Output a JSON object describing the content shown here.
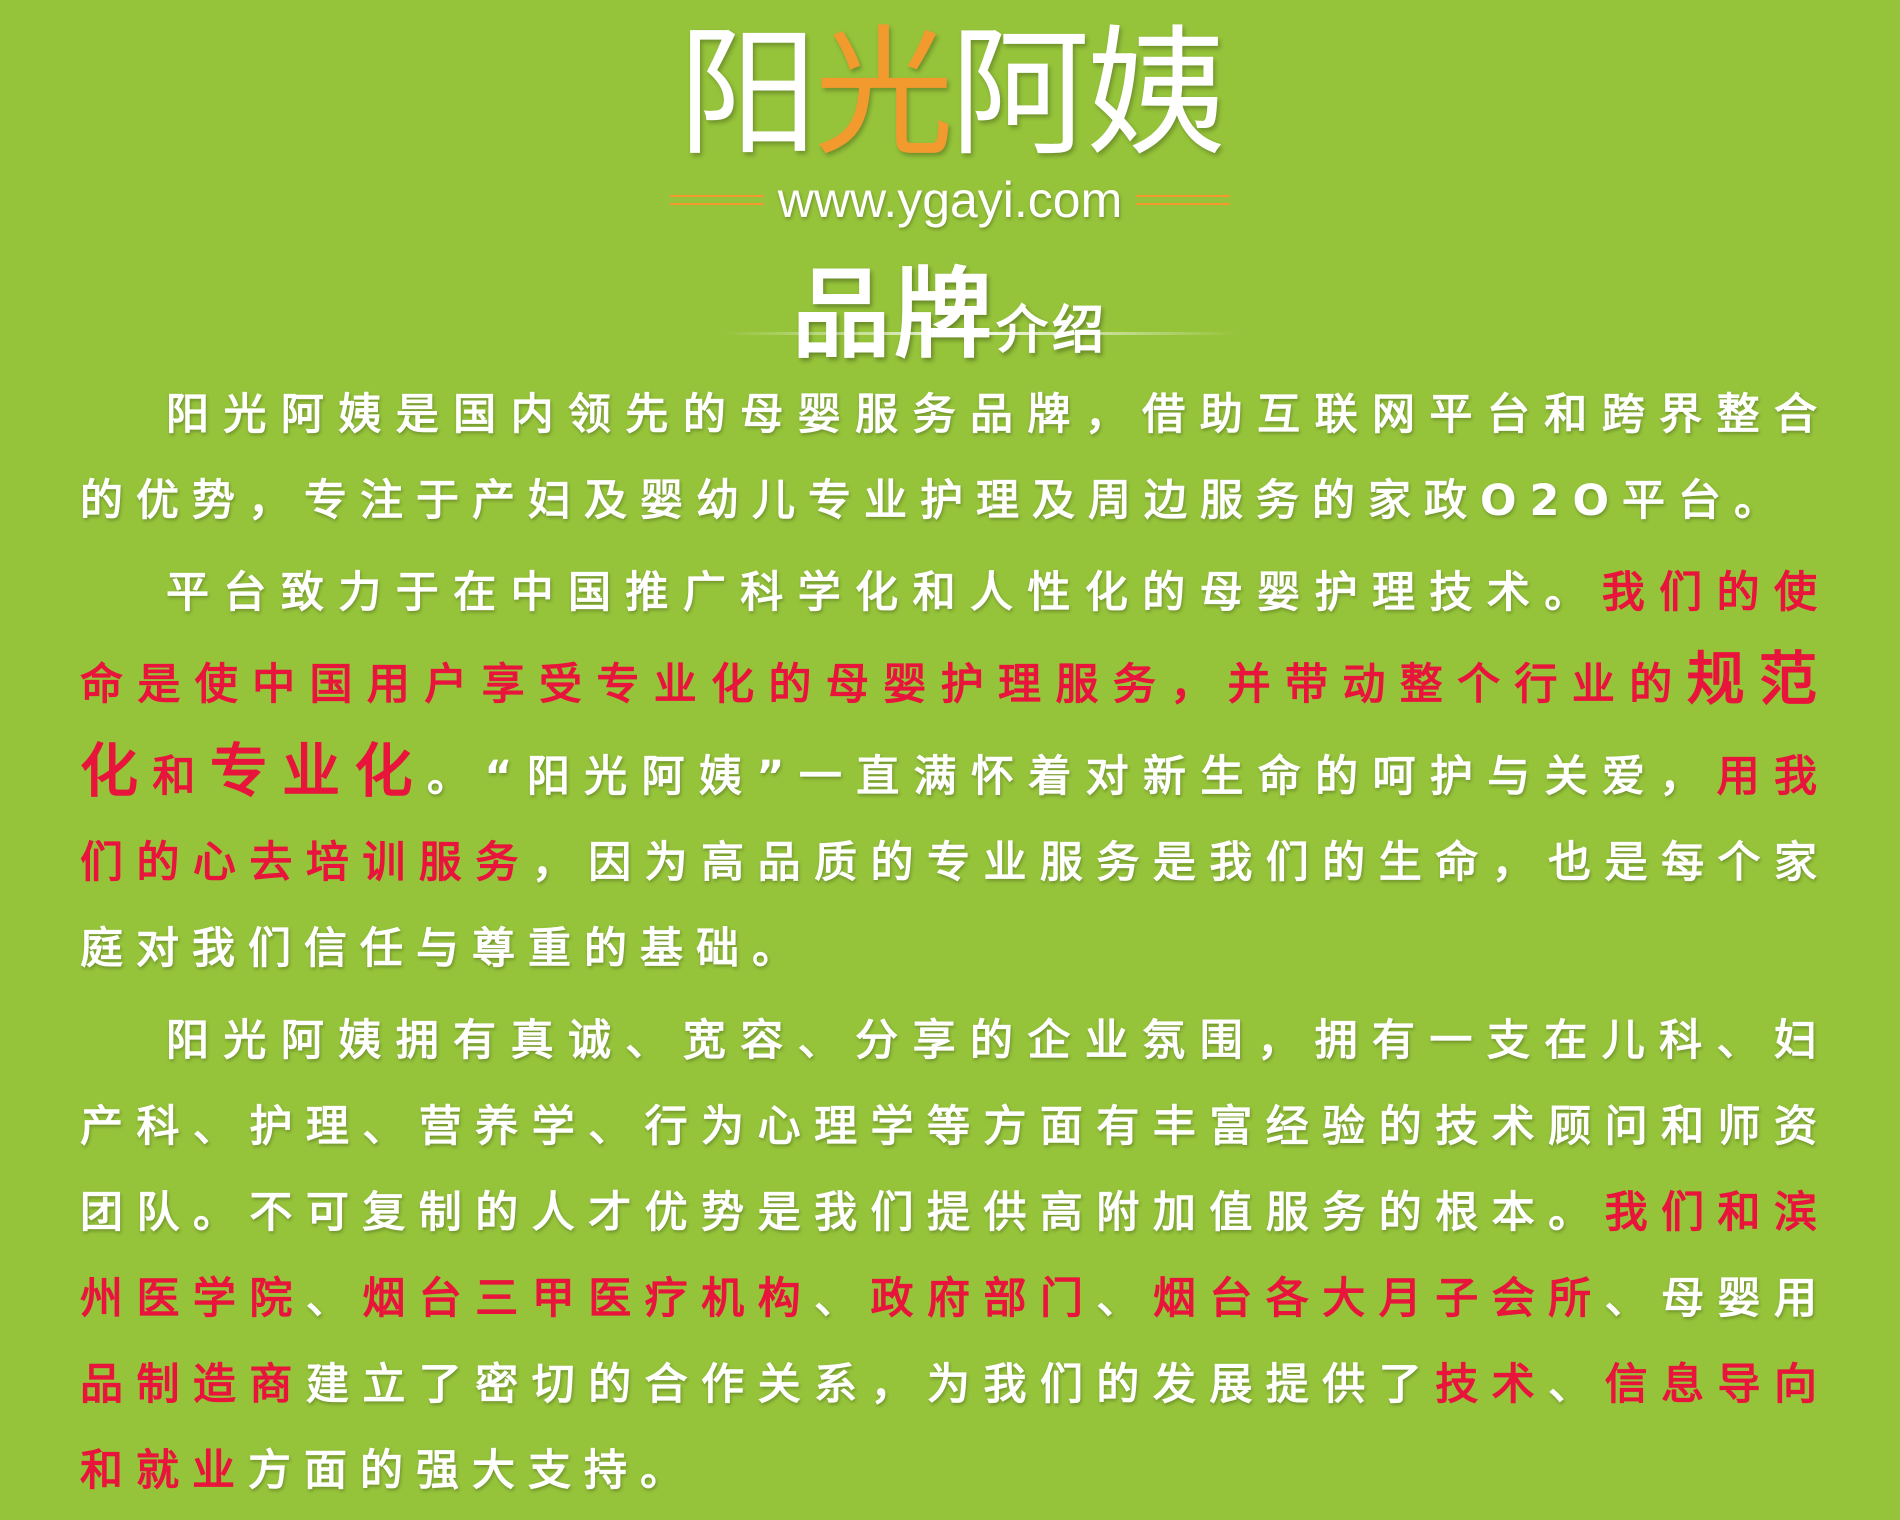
{
  "logo": {
    "chars": [
      "阳",
      "光",
      "阿",
      "姨"
    ],
    "colors": [
      "#ffffff",
      "#f39a2e",
      "#ffffff",
      "#ffffff"
    ],
    "url": "www.ygayi.com"
  },
  "section_title": {
    "big": "品牌",
    "small": "介绍"
  },
  "colors": {
    "background": "#95c33a",
    "highlight": "#e8143b",
    "accent": "#f39a2e"
  },
  "paragraphs": [
    [
      {
        "text": "阳光阿姨是国内领先的母婴服务品牌，借助互联网平台和跨界整合的优势，专注于产妇及婴幼儿专业护理及周边服务的家政O2O平台。",
        "style": "normal"
      }
    ],
    [
      {
        "text": "平台致力于在中国推广科学化和人性化的母婴护理技术。",
        "style": "normal"
      },
      {
        "text": "我们的使命是使中国用户享受专业化的母婴护理服务，并带动整个行业的",
        "style": "hl"
      },
      {
        "text": "规范化",
        "style": "hl-big"
      },
      {
        "text": "和",
        "style": "hl"
      },
      {
        "text": "专业化",
        "style": "hl-big"
      },
      {
        "text": "。“阳光阿姨”一直满怀着对新生命的呵护与关爱，",
        "style": "normal"
      },
      {
        "text": "用我们的心去培训服务",
        "style": "hl"
      },
      {
        "text": "，因为高品质的专业服务是我们的生命，也是每个家庭对我们信任与尊重的基础。",
        "style": "normal"
      }
    ],
    [
      {
        "text": "阳光阿姨拥有真诚、宽容、分享的企业氛围，拥有一支在儿科、妇产科、护理、营养学、行为心理学等方面有丰富经验的技术顾问和师资团队。不可复制的人才优势是我们提供高附加值服务的根本。",
        "style": "normal"
      },
      {
        "text": "我们和滨州医学院",
        "style": "hl"
      },
      {
        "text": "、",
        "style": "normal"
      },
      {
        "text": "烟台三甲医疗机构",
        "style": "hl"
      },
      {
        "text": "、",
        "style": "normal"
      },
      {
        "text": "政府部门",
        "style": "hl"
      },
      {
        "text": "、",
        "style": "normal"
      },
      {
        "text": "烟台各大月子会所",
        "style": "hl"
      },
      {
        "text": "、母婴用",
        "style": "normal"
      },
      {
        "text": "品制造商",
        "style": "hl"
      },
      {
        "text": "建立了密切的合作关系，为我们的发展提供了",
        "style": "normal"
      },
      {
        "text": "技术",
        "style": "hl"
      },
      {
        "text": "、",
        "style": "normal"
      },
      {
        "text": "信息导向和就业",
        "style": "hl"
      },
      {
        "text": "方面的强大支持。",
        "style": "normal"
      }
    ]
  ]
}
